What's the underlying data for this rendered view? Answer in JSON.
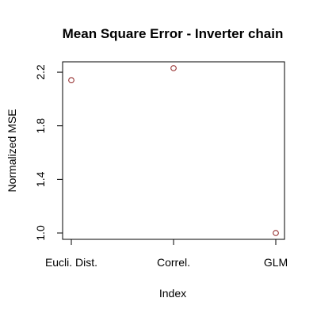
{
  "chart_data": {
    "type": "scatter",
    "title": "Mean Square Error - Inverter chain",
    "xlabel": "Index",
    "ylabel": "Normalized MSE",
    "x_index": [
      1,
      2,
      3
    ],
    "categories": [
      "Eucli. Dist.",
      "Correl.",
      "GLM"
    ],
    "values": [
      2.14,
      2.23,
      1.0
    ],
    "xlim": [
      1,
      3
    ],
    "ylim": [
      1.0,
      2.23
    ],
    "yticks": [
      1.0,
      1.4,
      1.8,
      2.2
    ],
    "ytick_labels": [
      "1.0",
      "1.4",
      "1.8",
      "2.2"
    ],
    "grid": false,
    "legend": "none",
    "point_color": "#8b1a1a",
    "marker": "open-circle"
  }
}
